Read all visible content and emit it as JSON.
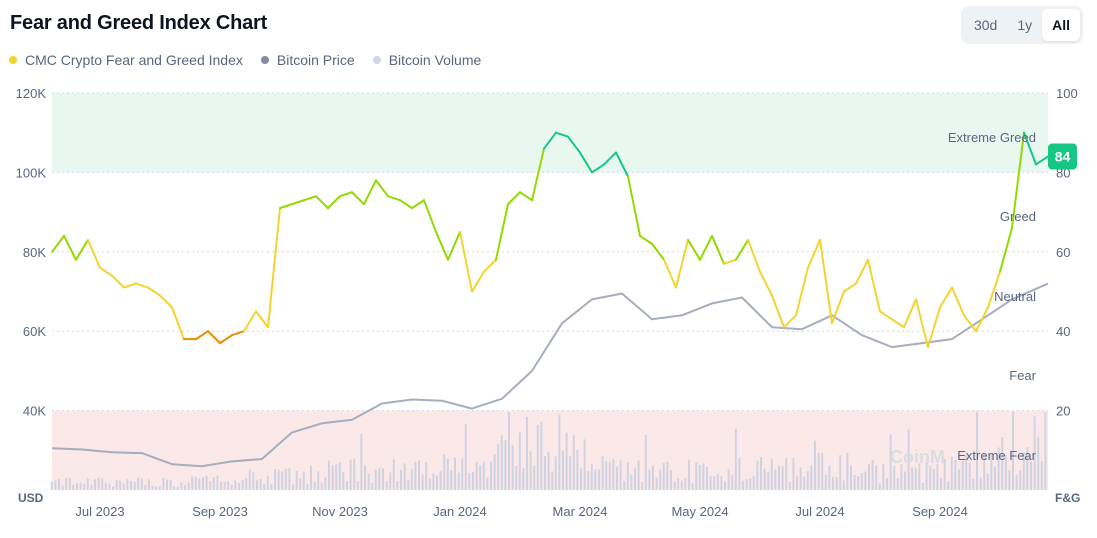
{
  "header": {
    "title": "Fear and Greed Index Chart"
  },
  "range_buttons": [
    {
      "label": "30d",
      "active": false
    },
    {
      "label": "1y",
      "active": false
    },
    {
      "label": "All",
      "active": true
    }
  ],
  "legend": [
    {
      "label": "CMC Crypto Fear and Greed Index",
      "color": "#f3d42f"
    },
    {
      "label": "Bitcoin Price",
      "color": "#858ca2"
    },
    {
      "label": "Bitcoin Volume",
      "color": "#cfd6e4"
    }
  ],
  "watermark": "CoinM",
  "chart_data": {
    "type": "line",
    "title": "Fear and Greed Index Chart",
    "left_axis": {
      "unit": "USD",
      "ticks": [
        "120K",
        "100K",
        "80K",
        "60K",
        "40K"
      ],
      "values": [
        120000,
        100000,
        80000,
        60000,
        40000
      ],
      "range": [
        20000,
        120000
      ]
    },
    "right_axis": {
      "unit": "F&G",
      "ticks": [
        "100",
        "80",
        "60",
        "40",
        "20"
      ],
      "values": [
        100,
        80,
        60,
        40,
        20
      ],
      "range": [
        0,
        100
      ]
    },
    "x_ticks": [
      "Jul 2023",
      "Sep 2023",
      "Nov 2023",
      "Jan 2024",
      "Mar 2024",
      "May 2024",
      "Jul 2024",
      "Sep 2024"
    ],
    "x_tick_months": [
      0.3,
      2.3,
      4.3,
      6.3,
      8.3,
      10.3,
      12.3,
      14.3
    ],
    "x_range_months": [
      0,
      16.6
    ],
    "zones": [
      {
        "label": "Extreme Greed",
        "range": [
          80,
          100
        ],
        "fill": "#e8f8f0"
      },
      {
        "label": "Greed",
        "range": [
          60,
          80
        ],
        "fill": ""
      },
      {
        "label": "Neutral",
        "range": [
          40,
          60
        ],
        "fill": ""
      },
      {
        "label": "Fear",
        "range": [
          20,
          40
        ],
        "fill": ""
      },
      {
        "label": "Extreme Fear",
        "range": [
          0,
          20
        ],
        "fill": "#fbe9e9"
      }
    ],
    "current_index": {
      "value": 84,
      "color": "#16c784"
    },
    "series": [
      {
        "name": "CMC Crypto Fear and Greed Index",
        "x": [
          0,
          0.2,
          0.4,
          0.6,
          0.8,
          1.0,
          1.2,
          1.4,
          1.6,
          1.8,
          2.0,
          2.2,
          2.4,
          2.6,
          2.8,
          3.0,
          3.2,
          3.4,
          3.6,
          3.8,
          4.0,
          4.2,
          4.4,
          4.6,
          4.8,
          5.0,
          5.2,
          5.4,
          5.6,
          5.8,
          6.0,
          6.2,
          6.4,
          6.6,
          6.8,
          7.0,
          7.2,
          7.4,
          7.6,
          7.8,
          8.0,
          8.2,
          8.4,
          8.6,
          8.8,
          9.0,
          9.2,
          9.4,
          9.6,
          9.8,
          10.0,
          10.2,
          10.4,
          10.6,
          10.8,
          11.0,
          11.2,
          11.4,
          11.6,
          11.8,
          12.0,
          12.2,
          12.4,
          12.6,
          12.8,
          13.0,
          13.2,
          13.4,
          13.6,
          13.8,
          14.0,
          14.2,
          14.4,
          14.6,
          14.8,
          15.0,
          15.2,
          15.4,
          15.6,
          15.8,
          16.0,
          16.2,
          16.4,
          16.6
        ],
        "values": [
          60,
          64,
          58,
          63,
          56,
          54,
          51,
          52,
          51,
          49,
          46,
          38,
          38,
          40,
          37,
          39,
          40,
          45,
          41,
          71,
          72,
          73,
          74,
          71,
          74,
          75,
          72,
          78,
          74,
          73,
          71,
          73,
          65,
          58,
          65,
          50,
          55,
          58,
          72,
          75,
          73,
          86,
          90,
          89,
          85,
          80,
          82,
          85,
          79,
          64,
          62,
          58,
          51,
          63,
          58,
          64,
          57,
          58,
          63,
          55,
          49,
          41,
          44,
          56,
          63,
          42,
          50,
          52,
          58,
          45,
          43,
          41,
          48,
          36,
          46,
          51,
          44,
          40,
          46,
          55,
          66,
          90,
          82,
          84
        ]
      },
      {
        "name": "Bitcoin Price",
        "x": [
          0,
          0.5,
          1.0,
          1.5,
          2.0,
          2.5,
          3.0,
          3.5,
          4.0,
          4.5,
          5.0,
          5.5,
          6.0,
          6.5,
          7.0,
          7.5,
          8.0,
          8.5,
          9.0,
          9.5,
          10.0,
          10.5,
          11.0,
          11.5,
          12.0,
          12.5,
          13.0,
          13.5,
          14.0,
          14.5,
          15.0,
          15.5,
          16.0,
          16.6
        ],
        "values": [
          30500,
          30200,
          29500,
          29300,
          26500,
          26000,
          27200,
          27800,
          34500,
          36800,
          37700,
          41800,
          42800,
          42500,
          40500,
          43000,
          50000,
          62000,
          68000,
          69500,
          63000,
          64000,
          67000,
          68500,
          61000,
          60500,
          64000,
          59000,
          56000,
          57000,
          58000,
          63000,
          68000,
          72000
        ]
      },
      {
        "name": "Bitcoin Volume",
        "x": [
          0,
          1,
          2,
          3,
          4,
          5,
          6,
          7,
          8,
          9,
          10,
          11,
          12,
          13,
          14,
          15,
          16,
          16.6
        ],
        "values": [
          0.6,
          0.5,
          0.5,
          0.8,
          1.0,
          1.6,
          1.2,
          1.5,
          3.2,
          2.0,
          1.4,
          1.2,
          1.6,
          1.8,
          1.2,
          1.4,
          2.4,
          3.6
        ]
      }
    ]
  }
}
